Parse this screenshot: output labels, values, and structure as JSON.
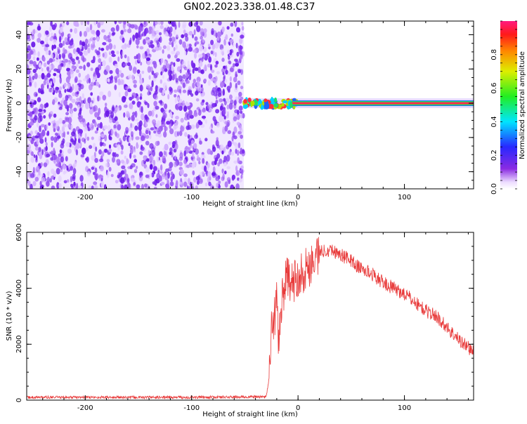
{
  "figure": {
    "title": "GN02.2023.338.01.48.C37"
  },
  "colors": {
    "scatter_purple": "#7b2cf0",
    "snr_line": "#e83a3a",
    "signal_core": "#ff2a4a",
    "signal_mid": "#22dd66",
    "signal_edge": "#1e64ff",
    "background": "#ffffff"
  },
  "chart_data": [
    {
      "type": "heatmap",
      "xlabel": "Height of straight line (km)",
      "ylabel": "Frequency (Hz)",
      "xlim": [
        -255,
        165
      ],
      "ylim": [
        -50,
        48
      ],
      "x_ticks": [
        -200,
        -100,
        0,
        100
      ],
      "y_ticks": [
        -40,
        -20,
        0,
        20,
        40
      ],
      "grid": false,
      "noise_region_x": [
        -255,
        -51
      ],
      "signal_region_x": [
        -51,
        165
      ],
      "signal_frequency_hz": 0,
      "colorbar": {
        "label": "Normalized spectral amplitude",
        "range": [
          0,
          1
        ],
        "ticks": [
          0.0,
          0.2,
          0.4,
          0.6,
          0.8
        ],
        "tick_labels": [
          "0.0",
          "0.2",
          "0.4",
          "0.6",
          "0.8"
        ],
        "colormap": "rainbow (white-violet-blue-cyan-green-yellow-red)"
      }
    },
    {
      "type": "line",
      "xlabel": "Height of straight line (km)",
      "ylabel": "SNR (10 * v/v)",
      "xlim": [
        -255,
        165
      ],
      "ylim": [
        0,
        6000
      ],
      "x_ticks": [
        -200,
        -100,
        0,
        100
      ],
      "y_ticks": [
        0,
        2000,
        4000,
        6000
      ],
      "grid": false,
      "series": [
        {
          "x": [
            -255,
            -200,
            -150,
            -100,
            -60,
            -30,
            -27,
            -25,
            -22,
            -20,
            -18,
            -15,
            -10,
            -5,
            0,
            5,
            10,
            20,
            30,
            40,
            50,
            55,
            60,
            70,
            80,
            90,
            100,
            110,
            120,
            130,
            140,
            150,
            160,
            165
          ],
          "y": [
            80,
            80,
            80,
            80,
            90,
            100,
            800,
            2500,
            3000,
            3600,
            2000,
            3800,
            4400,
            4100,
            4500,
            4600,
            4800,
            5300,
            5400,
            5200,
            5000,
            4800,
            4700,
            4500,
            4200,
            4000,
            3800,
            3500,
            3200,
            3000,
            2600,
            2200,
            1900,
            1700
          ]
        }
      ]
    }
  ]
}
